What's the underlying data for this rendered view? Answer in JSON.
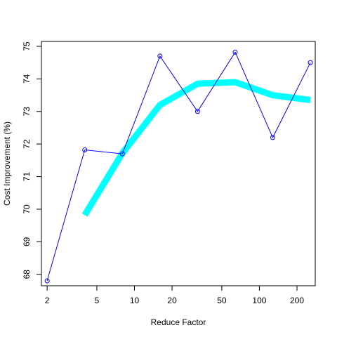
{
  "chart_data": {
    "type": "line",
    "title": "",
    "xlabel": "Reduce Factor",
    "ylabel": "Cost Improvement (%)",
    "x_scale": "log",
    "xlim": [
      1.8,
      280
    ],
    "ylim": [
      67.65,
      75.15
    ],
    "x_ticks": [
      2,
      5,
      10,
      20,
      50,
      100,
      200
    ],
    "y_ticks": [
      68,
      69,
      70,
      71,
      72,
      73,
      74,
      75
    ],
    "grid": false,
    "legend": "none",
    "series": [
      {
        "style": "line-with-open-circles",
        "color": "#0000ff",
        "x": [
          2,
          4,
          8,
          16,
          32,
          64,
          128,
          256
        ],
        "y": [
          67.8,
          71.82,
          71.7,
          74.7,
          73.0,
          74.82,
          72.2,
          74.5
        ]
      },
      {
        "style": "thick-line",
        "color": "#00ffff",
        "x": [
          4,
          8,
          16,
          32,
          64,
          128,
          256
        ],
        "y": [
          69.82,
          71.72,
          73.2,
          73.85,
          73.9,
          73.5,
          73.35
        ]
      }
    ]
  }
}
